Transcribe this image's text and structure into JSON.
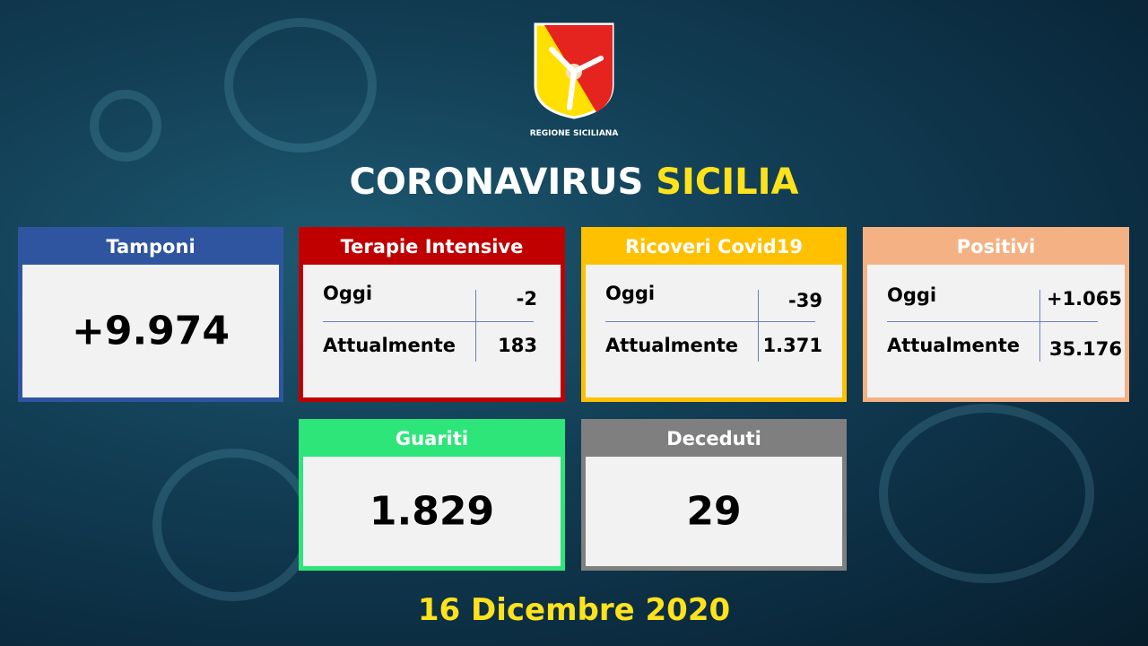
{
  "header": {
    "logo_text": "REGIONE SICILIANA",
    "title_main": "CORONAVIRUS",
    "title_highlight": "SICILIA"
  },
  "colors": {
    "tamponi": "#2f55a0",
    "terapie": "#c00000",
    "ricoveri": "#ffc000",
    "positivi": "#f4b183",
    "guariti": "#2ee57a",
    "deceduti": "#7f7f7f",
    "highlight": "#ffe21c"
  },
  "tamponi": {
    "label": "Tamponi",
    "value": "+9.974"
  },
  "terapie": {
    "label": "Terapie Intensive",
    "oggi_label": "Oggi",
    "oggi": "-2",
    "att_label": "Attualmente",
    "att": "183"
  },
  "ricoveri": {
    "label": "Ricoveri Covid19",
    "oggi_label": "Oggi",
    "oggi": "-39",
    "att_label": "Attualmente",
    "att": "1.371"
  },
  "positivi": {
    "label": "Positivi",
    "oggi_label": "Oggi",
    "oggi": "+1.065",
    "att_label": "Attualmente",
    "att": "35.176"
  },
  "guariti": {
    "label": "Guariti",
    "value": "1.829"
  },
  "deceduti": {
    "label": "Deceduti",
    "value": "29"
  },
  "date": "16 Dicembre 2020"
}
